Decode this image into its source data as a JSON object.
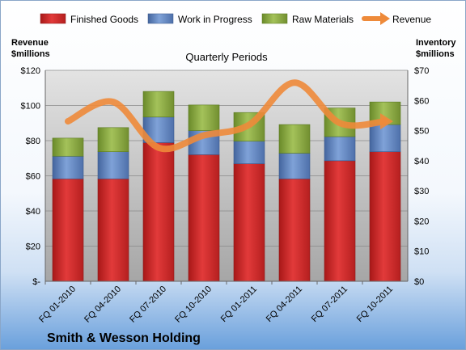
{
  "chart_data": {
    "type": "bar",
    "stacked": true,
    "company": "Smith & Wesson Holding",
    "subtitle": "Quarterly Periods",
    "left_axis": {
      "title_line1": "Revenue",
      "title_line2": "$millions",
      "ylim": [
        0,
        120
      ],
      "tick_labels": [
        "$-",
        "$20",
        "$40",
        "$60",
        "$80",
        "$100",
        "$120"
      ]
    },
    "right_axis": {
      "title_line1": "Inventory",
      "title_line2": "$millions",
      "ylim": [
        0,
        70
      ],
      "tick_labels": [
        "$0",
        "$10",
        "$20",
        "$30",
        "$40",
        "$50",
        "$60",
        "$70"
      ]
    },
    "categories": [
      "FQ 01-2010",
      "FQ 04-2010",
      "FQ 07-2010",
      "FQ 10-2010",
      "FQ 01-2011",
      "FQ 04-2011",
      "FQ 07-2011",
      "FQ 10-2011"
    ],
    "series": [
      {
        "name": "Finished Goods",
        "axis": "right",
        "color": "#d42a2a",
        "values": [
          34,
          34,
          46,
          42,
          39,
          34,
          40,
          43
        ]
      },
      {
        "name": "Work in Progress",
        "axis": "right",
        "color": "#5b82c2",
        "values": [
          7.5,
          9,
          8.5,
          8,
          7.5,
          8.5,
          8,
          9
        ]
      },
      {
        "name": "Raw Materials",
        "axis": "right",
        "color": "#86a83c",
        "values": [
          6,
          8,
          8.5,
          8.5,
          9.5,
          9.5,
          9.5,
          7.5
        ]
      },
      {
        "name": "Revenue",
        "axis": "left",
        "type": "line",
        "color": "#ee8a3a",
        "values": [
          91,
          102,
          76,
          83,
          89,
          113,
          90,
          91
        ]
      }
    ],
    "grid": true,
    "legend": "top"
  }
}
